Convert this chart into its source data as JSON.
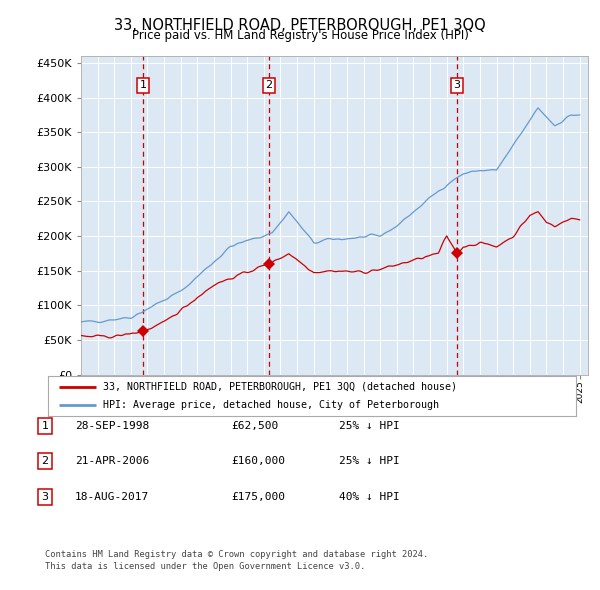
{
  "title": "33, NORTHFIELD ROAD, PETERBOROUGH, PE1 3QQ",
  "subtitle": "Price paid vs. HM Land Registry's House Price Index (HPI)",
  "background_color": "#dce9f5",
  "plot_bg_color": "#dce9f5",
  "hpi_color": "#6699cc",
  "price_color": "#cc0000",
  "dashed_line_color": "#cc0000",
  "ylim": [
    0,
    460000
  ],
  "yticks": [
    0,
    50000,
    100000,
    150000,
    200000,
    250000,
    300000,
    350000,
    400000,
    450000
  ],
  "transactions": [
    {
      "num": 1,
      "date": "28-SEP-1998",
      "price": 62500,
      "pct": "25%",
      "dir": "↓",
      "year": 1998.75
    },
    {
      "num": 2,
      "date": "21-APR-2006",
      "price": 160000,
      "pct": "25%",
      "dir": "↓",
      "year": 2006.3
    },
    {
      "num": 3,
      "date": "18-AUG-2017",
      "price": 175000,
      "pct": "40%",
      "dir": "↓",
      "year": 2017.63
    }
  ],
  "legend_label_red": "33, NORTHFIELD ROAD, PETERBOROUGH, PE1 3QQ (detached house)",
  "legend_label_blue": "HPI: Average price, detached house, City of Peterborough",
  "footer_line1": "Contains HM Land Registry data © Crown copyright and database right 2024.",
  "footer_line2": "This data is licensed under the Open Government Licence v3.0."
}
